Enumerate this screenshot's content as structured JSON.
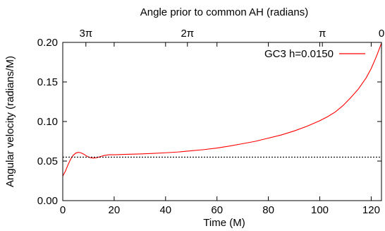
{
  "chart_data": {
    "type": "line",
    "xlabel": "Time (M)",
    "ylabel": "Angular velocity (radians/M)",
    "x2label": "Angle prior to common AH (radians)",
    "xlim": [
      0,
      124
    ],
    "ylim": [
      0.0,
      0.2
    ],
    "xticks": [
      0,
      20,
      40,
      60,
      80,
      100,
      120
    ],
    "xtick_labels": [
      "0",
      "20",
      "40",
      "60",
      "80",
      "100",
      "120"
    ],
    "yticks": [
      0.0,
      0.05,
      0.1,
      0.15,
      0.2
    ],
    "ytick_labels": [
      "0.00",
      "0.05",
      "0.10",
      "0.15",
      "0.20"
    ],
    "x2ticks": [
      {
        "x": 9.0,
        "label": "3π"
      },
      {
        "x": 48.5,
        "label": "2π"
      },
      {
        "x": 101.0,
        "label": "π"
      },
      {
        "x": 124.0,
        "label": "0"
      }
    ],
    "grid": false,
    "legend_position": "top-right",
    "series": [
      {
        "name": "GC3 h=0.0150",
        "color": "#ff0000",
        "style": "solid",
        "points": [
          [
            0,
            0.031
          ],
          [
            1,
            0.037
          ],
          [
            2,
            0.045
          ],
          [
            3,
            0.052
          ],
          [
            4,
            0.057
          ],
          [
            5,
            0.06
          ],
          [
            6,
            0.061
          ],
          [
            7,
            0.0605
          ],
          [
            8,
            0.059
          ],
          [
            9,
            0.057
          ],
          [
            10,
            0.055
          ],
          [
            11,
            0.054
          ],
          [
            12,
            0.0537
          ],
          [
            13,
            0.054
          ],
          [
            14,
            0.055
          ],
          [
            16,
            0.057
          ],
          [
            18,
            0.058
          ],
          [
            20,
            0.058
          ],
          [
            25,
            0.0585
          ],
          [
            30,
            0.059
          ],
          [
            35,
            0.0597
          ],
          [
            40,
            0.0605
          ],
          [
            45,
            0.0615
          ],
          [
            50,
            0.063
          ],
          [
            55,
            0.0645
          ],
          [
            60,
            0.0665
          ],
          [
            65,
            0.069
          ],
          [
            70,
            0.072
          ],
          [
            75,
            0.075
          ],
          [
            80,
            0.079
          ],
          [
            85,
            0.083
          ],
          [
            90,
            0.088
          ],
          [
            95,
            0.094
          ],
          [
            100,
            0.101
          ],
          [
            103,
            0.106
          ],
          [
            106,
            0.112
          ],
          [
            109,
            0.12
          ],
          [
            112,
            0.13
          ],
          [
            115,
            0.141
          ],
          [
            118,
            0.155
          ],
          [
            120,
            0.167
          ],
          [
            122,
            0.182
          ],
          [
            124,
            0.199
          ]
        ]
      },
      {
        "name": "",
        "color": "#000000",
        "style": "dotted",
        "points": [
          [
            0,
            0.055
          ],
          [
            124,
            0.055
          ]
        ]
      }
    ]
  }
}
